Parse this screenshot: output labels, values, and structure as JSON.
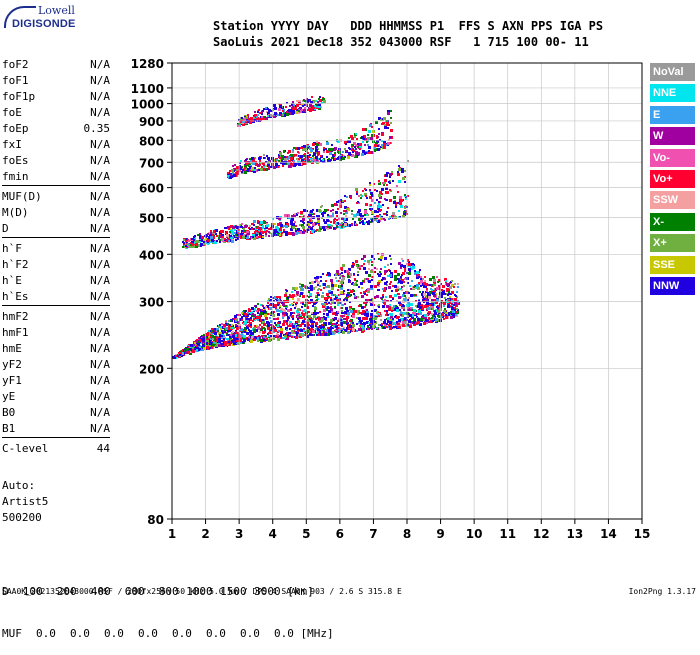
{
  "logo": {
    "line1": "Lowell",
    "line2": "DIGISONDE"
  },
  "header": {
    "line1": "Station YYYY DAY   DDD HHMMSS P1  FFS S AXN PPS IGA PS",
    "line2": "SaoLuis 2021 Dec18 352 043000 RSF   1 715 100 00- 11"
  },
  "params": {
    "groups": [
      [
        {
          "k": "foF2",
          "v": "N/A"
        },
        {
          "k": "foF1",
          "v": "N/A"
        },
        {
          "k": "foF1p",
          "v": "N/A"
        },
        {
          "k": "foE",
          "v": "N/A"
        },
        {
          "k": "foEp",
          "v": "0.35"
        },
        {
          "k": "fxI",
          "v": "N/A"
        },
        {
          "k": "foEs",
          "v": "N/A"
        },
        {
          "k": "fmin",
          "v": "N/A"
        }
      ],
      [
        {
          "k": "MUF(D)",
          "v": "N/A"
        },
        {
          "k": "M(D)",
          "v": "N/A"
        },
        {
          "k": "D",
          "v": "N/A"
        }
      ],
      [
        {
          "k": "h`F",
          "v": "N/A"
        },
        {
          "k": "h`F2",
          "v": "N/A"
        },
        {
          "k": "h`E",
          "v": "N/A"
        },
        {
          "k": "h`Es",
          "v": "N/A"
        }
      ],
      [
        {
          "k": "hmF2",
          "v": "N/A"
        },
        {
          "k": "hmF1",
          "v": "N/A"
        },
        {
          "k": "hmE",
          "v": "N/A"
        },
        {
          "k": "yF2",
          "v": "N/A"
        },
        {
          "k": "yF1",
          "v": "N/A"
        },
        {
          "k": "yE",
          "v": "N/A"
        },
        {
          "k": "B0",
          "v": "N/A"
        },
        {
          "k": "B1",
          "v": "N/A"
        }
      ],
      [
        {
          "k": "C-level",
          "v": "44"
        }
      ]
    ],
    "auto_lines": [
      "Auto:",
      "Artist5",
      "500200"
    ]
  },
  "legend": [
    {
      "label": "NoVal",
      "color": "#9a9a9a"
    },
    {
      "label": "NNE",
      "color": "#00e5ee"
    },
    {
      "label": "E",
      "color": "#3aa0f0"
    },
    {
      "label": "W",
      "color": "#a000a0"
    },
    {
      "label": "Vo-",
      "color": "#f050b0"
    },
    {
      "label": "Vo+",
      "color": "#ff0030"
    },
    {
      "label": "SSW",
      "color": "#f4a0a0"
    },
    {
      "label": "X-",
      "color": "#008000"
    },
    {
      "label": "X+",
      "color": "#70b040"
    },
    {
      "label": "SSE",
      "color": "#c8c800"
    },
    {
      "label": "NNW",
      "color": "#2000e0"
    }
  ],
  "chart_data": {
    "type": "scatter",
    "xlim": [
      1,
      15
    ],
    "xticks": [
      1,
      2,
      3,
      4,
      5,
      6,
      7,
      8,
      9,
      10,
      11,
      12,
      13,
      14,
      15
    ],
    "yscale": "log",
    "ylim": [
      80,
      1280
    ],
    "yticks": [
      80,
      200,
      300,
      400,
      500,
      600,
      700,
      800,
      900,
      1000,
      1100,
      1280
    ],
    "grid": true,
    "xlabel": "",
    "ylabel": "",
    "traces": [
      {
        "name": "F trace 1",
        "x": [
          1.0,
          2.0,
          3.0,
          4.0,
          5.0,
          6.0,
          7.0,
          8.0,
          8.5,
          9.0,
          9.5
        ],
        "y": [
          215,
          228,
          235,
          240,
          245,
          250,
          255,
          260,
          265,
          270,
          280
        ],
        "spread": [
          1.0,
          1.1,
          1.2,
          1.3,
          1.4,
          1.5,
          1.6,
          1.5,
          1.35,
          1.3,
          1.2
        ]
      },
      {
        "name": "F trace 2",
        "x": [
          1.3,
          2.0,
          3.0,
          4.0,
          5.0,
          6.0,
          7.0,
          8.0
        ],
        "y": [
          420,
          428,
          440,
          450,
          460,
          475,
          490,
          510
        ],
        "spread": [
          1.05,
          1.08,
          1.1,
          1.12,
          1.15,
          1.2,
          1.3,
          1.4
        ]
      },
      {
        "name": "F trace 3",
        "x": [
          2.6,
          3.0,
          4.0,
          5.0,
          6.0,
          7.0,
          7.5
        ],
        "y": [
          640,
          660,
          680,
          700,
          720,
          750,
          790
        ],
        "spread": [
          1.05,
          1.08,
          1.1,
          1.12,
          1.15,
          1.2,
          1.25
        ]
      },
      {
        "name": "F trace 4",
        "x": [
          2.9,
          3.5,
          4.0,
          5.0,
          5.5
        ],
        "y": [
          880,
          910,
          930,
          960,
          990
        ],
        "spread": [
          1.04,
          1.06,
          1.08,
          1.08,
          1.1
        ]
      }
    ]
  },
  "distance_table": {
    "d_label": "D",
    "d_values": [
      "100",
      "200",
      "400",
      "600",
      "800",
      "1000",
      "1500",
      "3000"
    ],
    "d_unit": "[km]",
    "muf_label": "MUF",
    "muf_values": [
      "0.0",
      "0.0",
      "0.0",
      "0.0",
      "0.0",
      "0.0",
      "0.0",
      "0.0"
    ],
    "muf_unit": "[MHz]"
  },
  "footer": {
    "text": "SAA0K_2021352043000.RSF / 280fx256h 50 kHz 5.0 km / DPS-4 SAA0K 903 / 2.6 S 315.8 E",
    "version": "Ion2Png 1.3.17"
  }
}
